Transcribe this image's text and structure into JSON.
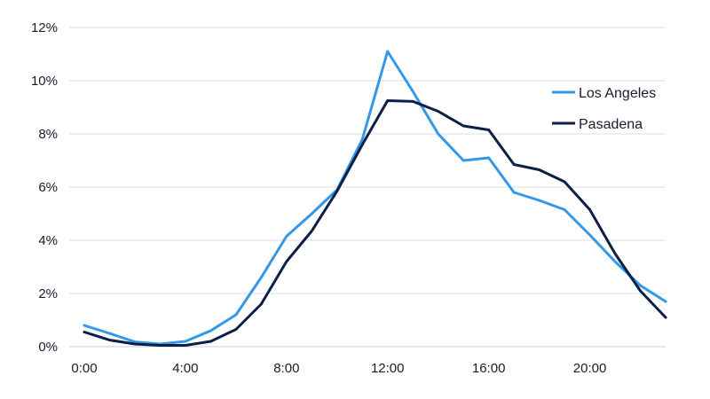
{
  "chart_data": {
    "type": "line",
    "title": "",
    "xlabel": "",
    "ylabel": "",
    "x": [
      0,
      1,
      2,
      3,
      4,
      5,
      6,
      7,
      8,
      9,
      10,
      11,
      12,
      13,
      14,
      15,
      16,
      17,
      18,
      19,
      20,
      21,
      22,
      23
    ],
    "x_ticks": [
      {
        "value": 0,
        "label": "0:00"
      },
      {
        "value": 4,
        "label": "4:00"
      },
      {
        "value": 8,
        "label": "8:00"
      },
      {
        "value": 12,
        "label": "12:00"
      },
      {
        "value": 16,
        "label": "16:00"
      },
      {
        "value": 20,
        "label": "20:00"
      }
    ],
    "y_ticks": [
      {
        "value": 0,
        "label": "0%"
      },
      {
        "value": 2,
        "label": "2%"
      },
      {
        "value": 4,
        "label": "4%"
      },
      {
        "value": 6,
        "label": "6%"
      },
      {
        "value": 8,
        "label": "8%"
      },
      {
        "value": 10,
        "label": "10%"
      },
      {
        "value": 12,
        "label": "12%"
      }
    ],
    "xlim": [
      0,
      23
    ],
    "ylim": [
      0,
      12
    ],
    "grid": "horizontal",
    "legend_position": "right",
    "series": [
      {
        "name": "Los Angeles",
        "color": "#3399e6",
        "values": [
          0.8,
          0.5,
          0.18,
          0.1,
          0.2,
          0.6,
          1.2,
          2.6,
          4.15,
          5.0,
          5.9,
          7.8,
          11.1,
          9.6,
          8.0,
          7.0,
          7.1,
          5.8,
          5.5,
          5.15,
          4.2,
          3.2,
          2.3,
          1.7
        ]
      },
      {
        "name": "Pasadena",
        "color": "#0c1f44",
        "values": [
          0.55,
          0.25,
          0.1,
          0.05,
          0.05,
          0.2,
          0.65,
          1.6,
          3.2,
          4.35,
          5.85,
          7.6,
          9.25,
          9.22,
          8.85,
          8.3,
          8.15,
          6.85,
          6.65,
          6.2,
          5.15,
          3.5,
          2.1,
          1.1
        ]
      }
    ]
  }
}
